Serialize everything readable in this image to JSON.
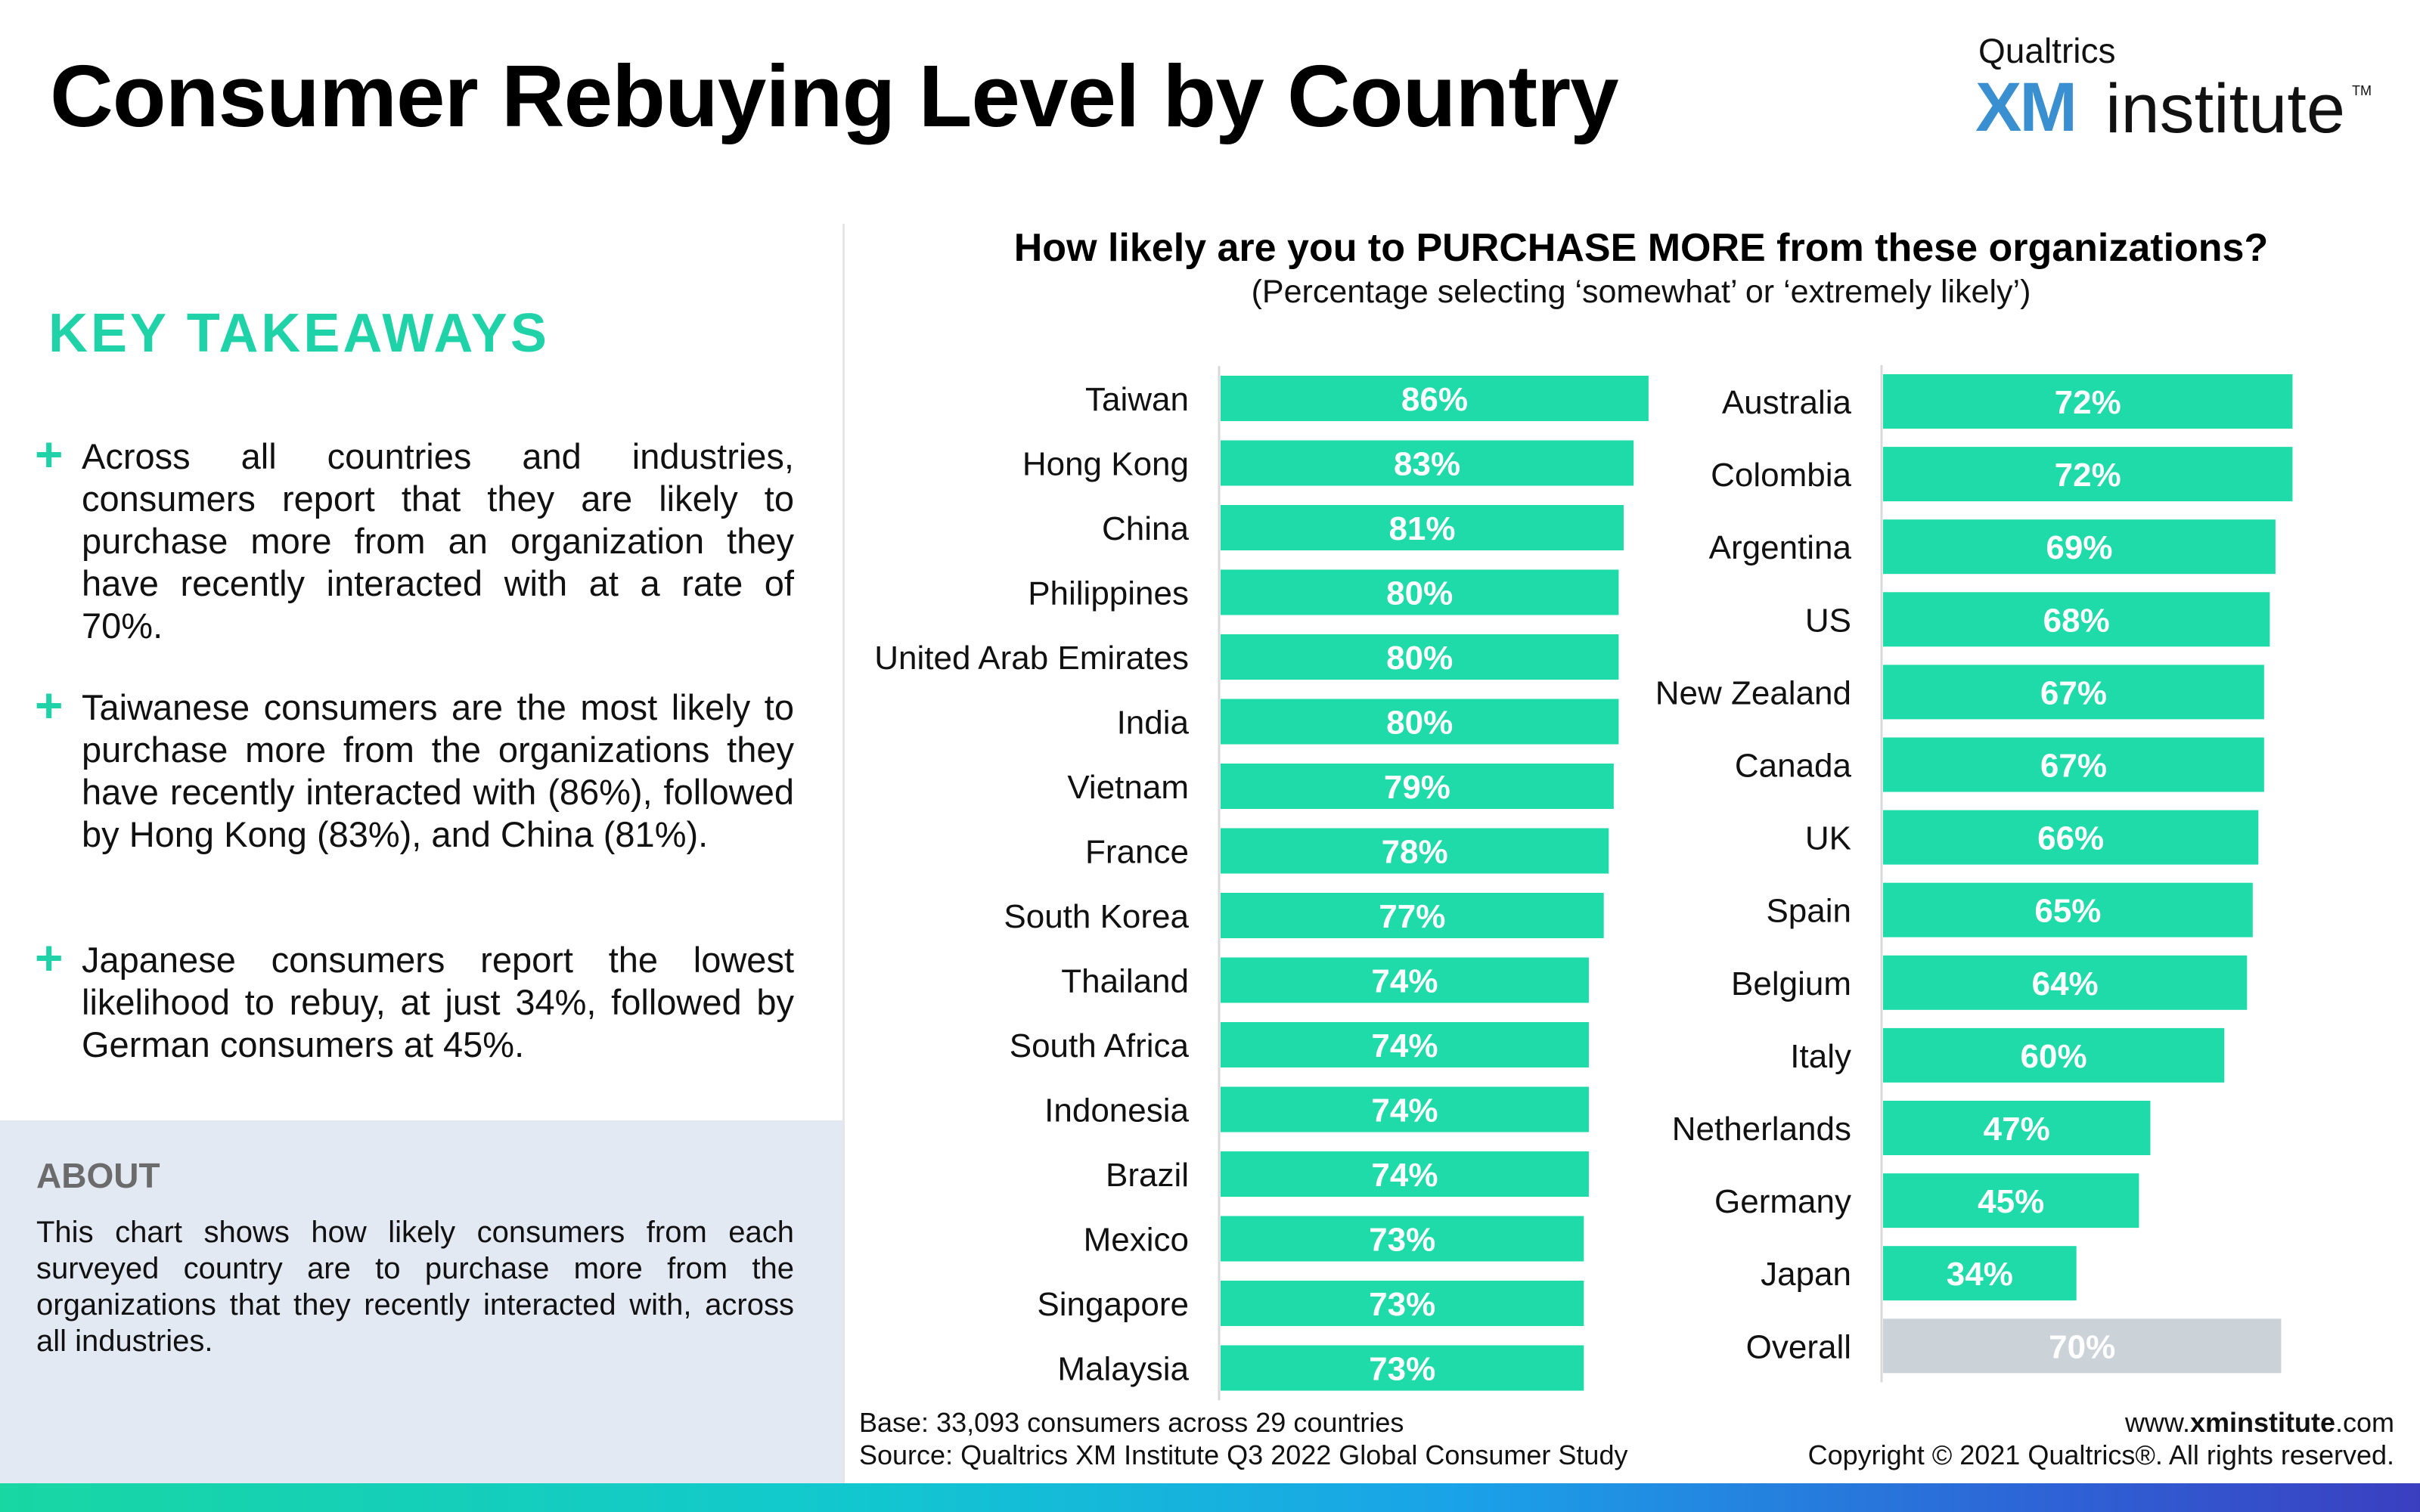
{
  "header": {
    "title": "Consumer Rebuying Level by Country",
    "logo_top": "Qualtrics",
    "logo_xm": "XM",
    "logo_institute": "institute",
    "logo_tm": "TM"
  },
  "takeaways": {
    "heading": "KEY TAKEAWAYS",
    "items": [
      "Across all countries and industries, consumers report that they are likely to purchase more from an organization they have recently interacted with at a rate of 70%.",
      "Taiwanese consumers are the most likely to purchase more from the organizations they have recently interacted with (86%), followed by Hong Kong (83%), and China (81%).",
      "Japanese consumers report the lowest likelihood to rebuy, at just 34%, followed by German consumers at 45%."
    ]
  },
  "about": {
    "heading": "ABOUT",
    "text": "This chart shows how likely consumers from each surveyed country are to purchase more from the organizations that they recently interacted with, across all industries."
  },
  "chart_data": {
    "type": "bar",
    "orientation": "horizontal",
    "title": "How likely are you to PURCHASE MORE from these organizations?",
    "subtitle": "(Percentage selecting ‘somewhat’ or ‘extremely likely’)",
    "unit": "%",
    "xlim": [
      0,
      100
    ],
    "colors": {
      "bar": "#1fdaa9",
      "overall": "#cbd2d8",
      "label": "#ffffff",
      "axis": "#d9d9d9"
    },
    "panels": [
      {
        "categories": [
          "Taiwan",
          "Hong Kong",
          "China",
          "Philippines",
          "United Arab Emirates",
          "India",
          "Vietnam",
          "France",
          "South Korea",
          "Thailand",
          "South Africa",
          "Indonesia",
          "Brazil",
          "Mexico",
          "Singapore",
          "Malaysia"
        ],
        "values": [
          86,
          83,
          81,
          80,
          80,
          80,
          79,
          78,
          77,
          74,
          74,
          74,
          74,
          73,
          73,
          73
        ],
        "labels": [
          "86%",
          "83%",
          "81%",
          "80%",
          "80%",
          "80%",
          "79%",
          "78%",
          "77%",
          "74%",
          "74%",
          "74%",
          "74%",
          "73%",
          "73%",
          "73%"
        ]
      },
      {
        "categories": [
          "Australia",
          "Colombia",
          "Argentina",
          "US",
          "New Zealand",
          "Canada",
          "UK",
          "Spain",
          "Belgium",
          "Italy",
          "Netherlands",
          "Germany",
          "Japan",
          "Overall"
        ],
        "values": [
          72,
          72,
          69,
          68,
          67,
          67,
          66,
          65,
          64,
          60,
          47,
          45,
          34,
          70
        ],
        "labels": [
          "72%",
          "72%",
          "69%",
          "68%",
          "67%",
          "67%",
          "66%",
          "65%",
          "64%",
          "60%",
          "47%",
          "45%",
          "34%",
          "70%"
        ],
        "highlight": "Overall"
      }
    ]
  },
  "footer": {
    "base": "Base: 33,093 consumers across 29 countries",
    "source": "Source: Qualtrics XM Institute Q3 2022 Global Consumer Study",
    "url_prefix": "www.",
    "url_bold": "xminstitute",
    "url_suffix": ".com",
    "copyright": "Copyright © 2021 Qualtrics®. All rights reserved."
  }
}
